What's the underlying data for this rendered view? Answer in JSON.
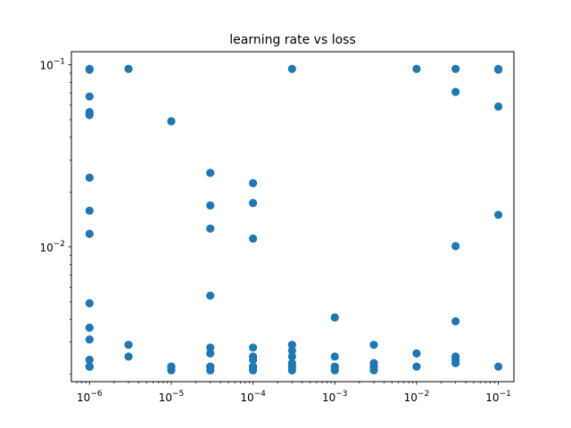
{
  "chart_data": {
    "type": "scatter",
    "title": "learning rate vs loss",
    "xlabel": "",
    "ylabel": "",
    "xscale": "log",
    "yscale": "log",
    "xlim": [
      6e-07,
      0.155
    ],
    "ylim": [
      0.00182,
      0.118
    ],
    "grid": false,
    "legend": "none",
    "color": "#1f77b4",
    "x_ticks": [
      {
        "value": 1e-06,
        "base": "10",
        "exp": "−6"
      },
      {
        "value": 1e-05,
        "base": "10",
        "exp": "−5"
      },
      {
        "value": 0.0001,
        "base": "10",
        "exp": "−4"
      },
      {
        "value": 0.001,
        "base": "10",
        "exp": "−3"
      },
      {
        "value": 0.01,
        "base": "10",
        "exp": "−2"
      },
      {
        "value": 0.1,
        "base": "10",
        "exp": "−1"
      }
    ],
    "y_ticks": [
      {
        "value": 0.01,
        "base": "10",
        "exp": "−2"
      },
      {
        "value": 0.1,
        "base": "10",
        "exp": "−1"
      }
    ],
    "x": [
      1e-06,
      1e-06,
      1e-06,
      1e-06,
      1e-06,
      1e-06,
      1e-06,
      1e-06,
      1e-06,
      1e-06,
      1e-06,
      1e-06,
      1e-06,
      1e-06,
      1e-06,
      3e-06,
      3e-06,
      3e-06,
      1e-05,
      1e-05,
      1e-05,
      1e-05,
      3e-05,
      3e-05,
      3e-05,
      3e-05,
      3e-05,
      3e-05,
      3e-05,
      3e-05,
      3e-05,
      0.0001,
      0.0001,
      0.0001,
      0.0001,
      0.0001,
      0.0001,
      0.0001,
      0.0001,
      0.0001,
      0.0003,
      0.0003,
      0.0003,
      0.0003,
      0.0003,
      0.0003,
      0.0003,
      0.001,
      0.001,
      0.001,
      0.001,
      0.003,
      0.003,
      0.003,
      0.003,
      0.01,
      0.01,
      0.01,
      0.03,
      0.03,
      0.03,
      0.03,
      0.03,
      0.03,
      0.03,
      0.1,
      0.1,
      0.1,
      0.1,
      0.1
    ],
    "y": [
      0.095,
      0.094,
      0.067,
      0.055,
      0.053,
      0.024,
      0.0158,
      0.0118,
      0.0049,
      0.0036,
      0.0031,
      0.0024,
      0.0022,
      0.0022,
      0.0022,
      0.095,
      0.0029,
      0.0025,
      0.049,
      0.0022,
      0.0022,
      0.0021,
      0.0255,
      0.0169,
      0.0126,
      0.0054,
      0.0028,
      0.0026,
      0.0022,
      0.0022,
      0.0021,
      0.0224,
      0.0174,
      0.0111,
      0.0028,
      0.0025,
      0.0024,
      0.0022,
      0.0022,
      0.0021,
      0.095,
      0.0029,
      0.0027,
      0.0025,
      0.0023,
      0.0022,
      0.0021,
      0.0041,
      0.0025,
      0.0022,
      0.0021,
      0.0029,
      0.0023,
      0.0022,
      0.0021,
      0.095,
      0.0026,
      0.0022,
      0.095,
      0.071,
      0.0101,
      0.0039,
      0.0025,
      0.0024,
      0.0023,
      0.095,
      0.094,
      0.059,
      0.015,
      0.0022
    ]
  }
}
